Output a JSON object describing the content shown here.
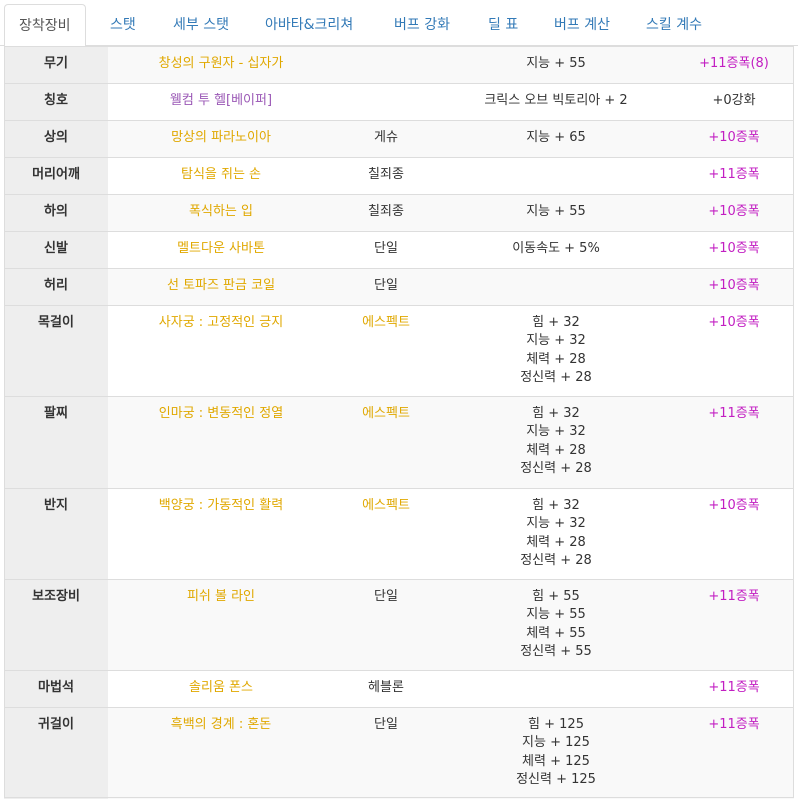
{
  "tabs": [
    {
      "label": "장착장비",
      "active": true
    },
    {
      "label": "스탯"
    },
    {
      "label": "세부 스탯"
    },
    {
      "label": "아바타&크리쳐"
    },
    {
      "label": "버프 강화"
    },
    {
      "label": "딜 표"
    },
    {
      "label": "버프 계산"
    },
    {
      "label": "스킬 계수"
    }
  ],
  "colors": {
    "item_name": "#e0a800",
    "title_name": "#9b59b6",
    "upgrade": "#c21ec2",
    "tab_link": "#337ab7"
  },
  "equipment": [
    {
      "slot": "무기",
      "name": "창성의 구원자 - 십자가",
      "set": "",
      "stats": [
        "지능 + 55"
      ],
      "upgrade": "+11증폭(8)"
    },
    {
      "slot": "칭호",
      "name": "웰컴 투 헬[베이퍼]",
      "set": "",
      "stats": [
        "크릭스 오브 빅토리아 + 2"
      ],
      "upgrade": "+0강화"
    },
    {
      "slot": "상의",
      "name": "망상의 파라노이아",
      "set": "게슈",
      "stats": [
        "지능 + 65"
      ],
      "upgrade": "+10증폭"
    },
    {
      "slot": "머리어깨",
      "name": "탐식을 쥐는 손",
      "set": "칠죄종",
      "stats": [],
      "upgrade": "+11증폭"
    },
    {
      "slot": "하의",
      "name": "폭식하는 입",
      "set": "칠죄종",
      "stats": [
        "지능 + 55"
      ],
      "upgrade": "+10증폭"
    },
    {
      "slot": "신발",
      "name": "멜트다운 사바톤",
      "set": "단일",
      "stats": [
        "이동속도 + 5%"
      ],
      "upgrade": "+10증폭"
    },
    {
      "slot": "허리",
      "name": "선 토파즈 판금 코일",
      "set": "단일",
      "stats": [],
      "upgrade": "+10증폭"
    },
    {
      "slot": "목걸이",
      "name": "사자궁 : 고정적인 긍지",
      "set": "에스펙트",
      "stats": [
        "힘 + 32",
        "지능 + 32",
        "체력 + 28",
        "정신력 + 28"
      ],
      "upgrade": "+10증폭"
    },
    {
      "slot": "팔찌",
      "name": "인마궁 : 변동적인 정열",
      "set": "에스펙트",
      "stats": [
        "힘 + 32",
        "지능 + 32",
        "체력 + 28",
        "정신력 + 28"
      ],
      "upgrade": "+11증폭"
    },
    {
      "slot": "반지",
      "name": "백양궁 : 가동적인 활력",
      "set": "에스펙트",
      "stats": [
        "힘 + 32",
        "지능 + 32",
        "체력 + 28",
        "정신력 + 28"
      ],
      "upgrade": "+10증폭"
    },
    {
      "slot": "보조장비",
      "name": "피쉬 볼 라인",
      "set": "단일",
      "stats": [
        "힘 + 55",
        "지능 + 55",
        "체력 + 55",
        "정신력 + 55"
      ],
      "upgrade": "+11증폭"
    },
    {
      "slot": "마법석",
      "name": "솔리움 폰스",
      "set": "헤블론",
      "stats": [],
      "upgrade": "+11증폭"
    },
    {
      "slot": "귀걸이",
      "name": "흑백의 경계 : 혼돈",
      "set": "단일",
      "stats": [
        "힘 + 125",
        "지능 + 125",
        "체력 + 125",
        "정신력 + 125"
      ],
      "upgrade": "+11증폭"
    }
  ]
}
